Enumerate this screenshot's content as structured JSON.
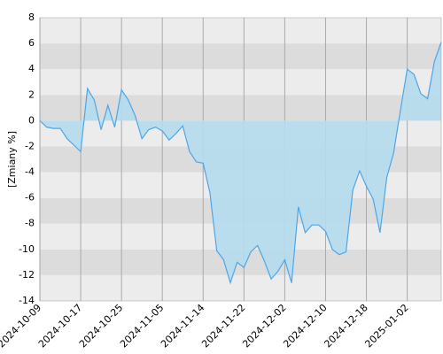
{
  "chart_data": {
    "type": "area",
    "ylabel": "[Zmiany %]",
    "categories": [
      "2024-10-09",
      null,
      null,
      null,
      null,
      null,
      "2024-10-17",
      null,
      null,
      null,
      null,
      null,
      "2024-10-25",
      null,
      null,
      null,
      null,
      null,
      "2024-11-05",
      null,
      null,
      null,
      null,
      null,
      "2024-11-14",
      null,
      null,
      null,
      null,
      null,
      "2024-11-22",
      null,
      null,
      null,
      null,
      null,
      "2024-12-02",
      null,
      null,
      null,
      null,
      null,
      "2024-12-10",
      null,
      null,
      null,
      null,
      null,
      "2024-12-18",
      null,
      null,
      null,
      null,
      null,
      "2025-01-02",
      null,
      null,
      null,
      null,
      null
    ],
    "values": [
      0,
      -0.5,
      -0.6,
      -0.6,
      -1.4,
      -1.9,
      -2.4,
      2.5,
      1.6,
      -0.7,
      1.2,
      -0.5,
      2.4,
      1.6,
      0.4,
      -1.4,
      -0.7,
      -0.5,
      -0.8,
      -1.5,
      -1.0,
      -0.4,
      -2.4,
      -3.2,
      -3.3,
      -5.6,
      -10.1,
      -10.8,
      -12.6,
      -11.0,
      -11.4,
      -10.2,
      -9.7,
      -10.9,
      -12.3,
      -11.7,
      -10.8,
      -12.6,
      -6.7,
      -8.7,
      -8.1,
      -8.1,
      -8.6,
      -10.0,
      -10.4,
      -10.2,
      -5.4,
      -3.9,
      -5.1,
      -6.1,
      -8.7,
      -4.4,
      -2.5,
      0.8,
      4.0,
      3.6,
      2.1,
      1.7,
      4.6,
      6.1
    ],
    "color": "#4da6e8",
    "fill": "#b5dcee",
    "ylim": [
      -14,
      8
    ],
    "yticks": [
      -14,
      -12,
      -10,
      -8,
      -6,
      -4,
      -2,
      0,
      2,
      4,
      6,
      8
    ],
    "grid": true
  }
}
